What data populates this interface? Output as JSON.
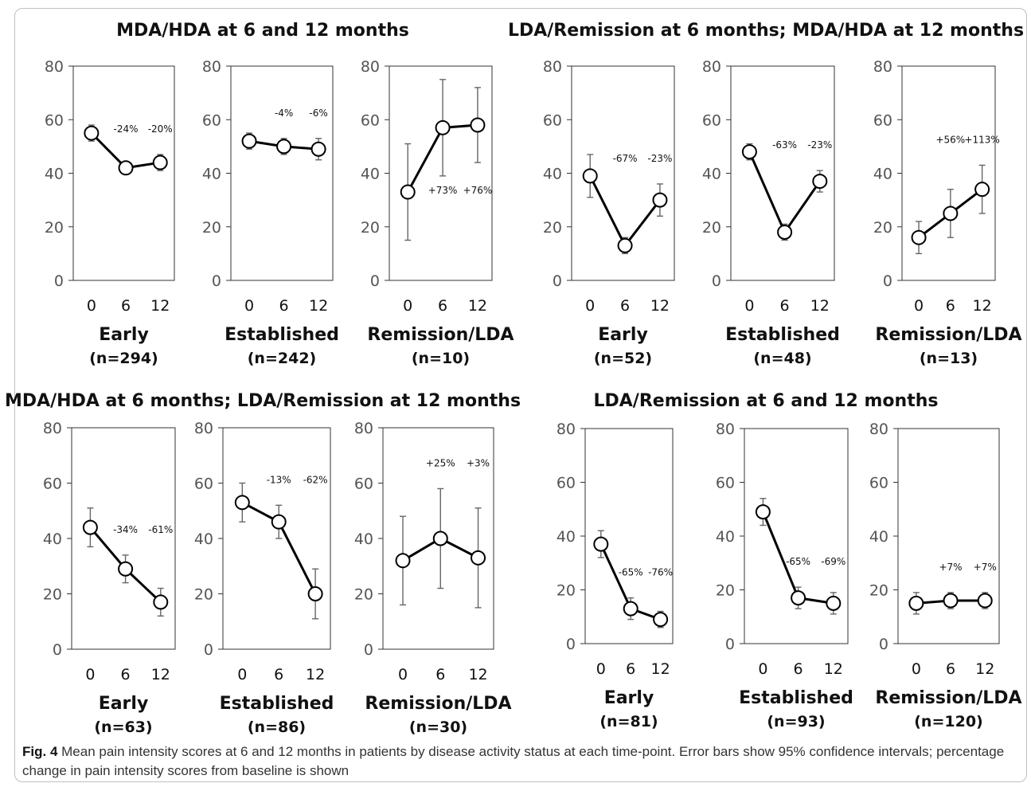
{
  "figure": {
    "caption_label": "Fig. 4",
    "caption_text": "Mean pain intensity scores at 6 and 12 months in patients by disease activity status at each time-point. Error bars show 95% confidence intervals; percentage change in pain intensity scores from baseline is shown"
  },
  "chart_data": [
    {
      "group_title": "MDA/HDA at 6 and 12 months",
      "panels": [
        {
          "type": "line",
          "x": [
            "0",
            "6",
            "12"
          ],
          "values": [
            55,
            42,
            44
          ],
          "ci_low": [
            52,
            40,
            41
          ],
          "ci_high": [
            58,
            44,
            47
          ],
          "pct_change": [
            "-24%",
            "-20%"
          ],
          "label": "Early",
          "n": "(n=294)",
          "ylim": [
            0,
            80
          ],
          "yticks": [
            "0",
            "20",
            "40",
            "60",
            "80"
          ]
        },
        {
          "type": "line",
          "x": [
            "0",
            "6",
            "12"
          ],
          "values": [
            52,
            50,
            49
          ],
          "ci_low": [
            49,
            47,
            45
          ],
          "ci_high": [
            55,
            53,
            53
          ],
          "pct_change": [
            "-4%",
            "-6%"
          ],
          "label": "Established",
          "n": "(n=242)",
          "ylim": [
            0,
            80
          ],
          "yticks": [
            "0",
            "20",
            "40",
            "60",
            "80"
          ]
        },
        {
          "type": "line",
          "x": [
            "0",
            "6",
            "12"
          ],
          "values": [
            33,
            57,
            58
          ],
          "ci_low": [
            15,
            39,
            44
          ],
          "ci_high": [
            51,
            75,
            72
          ],
          "pct_change": [
            "+73%",
            "+76%"
          ],
          "label": "Remission/LDA",
          "n": "(n=10)",
          "ylim": [
            0,
            80
          ],
          "yticks": [
            "0",
            "20",
            "40",
            "60",
            "80"
          ]
        }
      ]
    },
    {
      "group_title": "LDA/Remission at 6 months; MDA/HDA at 12 months",
      "panels": [
        {
          "type": "line",
          "x": [
            "0",
            "6",
            "12"
          ],
          "values": [
            39,
            13,
            30
          ],
          "ci_low": [
            31,
            10,
            24
          ],
          "ci_high": [
            47,
            16,
            36
          ],
          "pct_change": [
            "-67%",
            "-23%"
          ],
          "label": "Early",
          "n": "(n=52)",
          "ylim": [
            0,
            80
          ],
          "yticks": [
            "0",
            "20",
            "40",
            "60",
            "80"
          ]
        },
        {
          "type": "line",
          "x": [
            "0",
            "6",
            "12"
          ],
          "values": [
            48,
            18,
            37
          ],
          "ci_low": [
            45,
            15,
            33
          ],
          "ci_high": [
            51,
            21,
            41
          ],
          "pct_change": [
            "-63%",
            "-23%"
          ],
          "label": "Established",
          "n": "(n=48)",
          "ylim": [
            0,
            80
          ],
          "yticks": [
            "0",
            "20",
            "40",
            "60",
            "80"
          ]
        },
        {
          "type": "line",
          "x": [
            "0",
            "6",
            "12"
          ],
          "values": [
            16,
            25,
            34
          ],
          "ci_low": [
            10,
            16,
            25
          ],
          "ci_high": [
            22,
            34,
            43
          ],
          "pct_change": [
            "+56%",
            "+113%"
          ],
          "label": "Remission/LDA",
          "n": "(n=13)",
          "ylim": [
            0,
            80
          ],
          "yticks": [
            "0",
            "20",
            "40",
            "60",
            "80"
          ]
        }
      ]
    },
    {
      "group_title": "MDA/HDA at 6 months; LDA/Remission at 12 months",
      "panels": [
        {
          "type": "line",
          "x": [
            "0",
            "6",
            "12"
          ],
          "values": [
            44,
            29,
            17
          ],
          "ci_low": [
            37,
            24,
            12
          ],
          "ci_high": [
            51,
            34,
            22
          ],
          "pct_change": [
            "-34%",
            "-61%"
          ],
          "label": "Early",
          "n": "(n=63)",
          "ylim": [
            0,
            80
          ],
          "yticks": [
            "0",
            "20",
            "40",
            "60",
            "80"
          ]
        },
        {
          "type": "line",
          "x": [
            "0",
            "6",
            "12"
          ],
          "values": [
            53,
            46,
            20
          ],
          "ci_low": [
            46,
            40,
            11
          ],
          "ci_high": [
            60,
            52,
            29
          ],
          "pct_change": [
            "-13%",
            "-62%"
          ],
          "label": "Established",
          "n": "(n=86)",
          "ylim": [
            0,
            80
          ],
          "yticks": [
            "0",
            "20",
            "40",
            "60",
            "80"
          ]
        },
        {
          "type": "line",
          "x": [
            "0",
            "6",
            "12"
          ],
          "values": [
            32,
            40,
            33
          ],
          "ci_low": [
            16,
            22,
            15
          ],
          "ci_high": [
            48,
            58,
            51
          ],
          "pct_change": [
            "+25%",
            "+3%"
          ],
          "label": "Remission/LDA",
          "n": "(n=30)",
          "ylim": [
            0,
            80
          ],
          "yticks": [
            "0",
            "20",
            "40",
            "60",
            "80"
          ]
        }
      ]
    },
    {
      "group_title": "LDA/Remission at 6 and 12 months",
      "panels": [
        {
          "type": "line",
          "x": [
            "0",
            "6",
            "12"
          ],
          "values": [
            37,
            13,
            9
          ],
          "ci_low": [
            32,
            9,
            6
          ],
          "ci_high": [
            42,
            17,
            12
          ],
          "pct_change": [
            "-65%",
            "-76%"
          ],
          "label": "Early",
          "n": "(n=81)",
          "ylim": [
            0,
            80
          ],
          "yticks": [
            "0",
            "20",
            "40",
            "60",
            "80"
          ]
        },
        {
          "type": "line",
          "x": [
            "0",
            "6",
            "12"
          ],
          "values": [
            49,
            17,
            15
          ],
          "ci_low": [
            44,
            13,
            11
          ],
          "ci_high": [
            54,
            21,
            19
          ],
          "pct_change": [
            "-65%",
            "-69%"
          ],
          "label": "Established",
          "n": "(n=93)",
          "ylim": [
            0,
            80
          ],
          "yticks": [
            "0",
            "20",
            "40",
            "60",
            "80"
          ]
        },
        {
          "type": "line",
          "x": [
            "0",
            "6",
            "12"
          ],
          "values": [
            15,
            16,
            16
          ],
          "ci_low": [
            11,
            13,
            13
          ],
          "ci_high": [
            19,
            19,
            19
          ],
          "pct_change": [
            "+7%",
            "+7%"
          ],
          "label": "Remission/LDA",
          "n": "(n=120)",
          "ylim": [
            0,
            80
          ],
          "yticks": [
            "0",
            "20",
            "40",
            "60",
            "80"
          ]
        }
      ]
    }
  ]
}
